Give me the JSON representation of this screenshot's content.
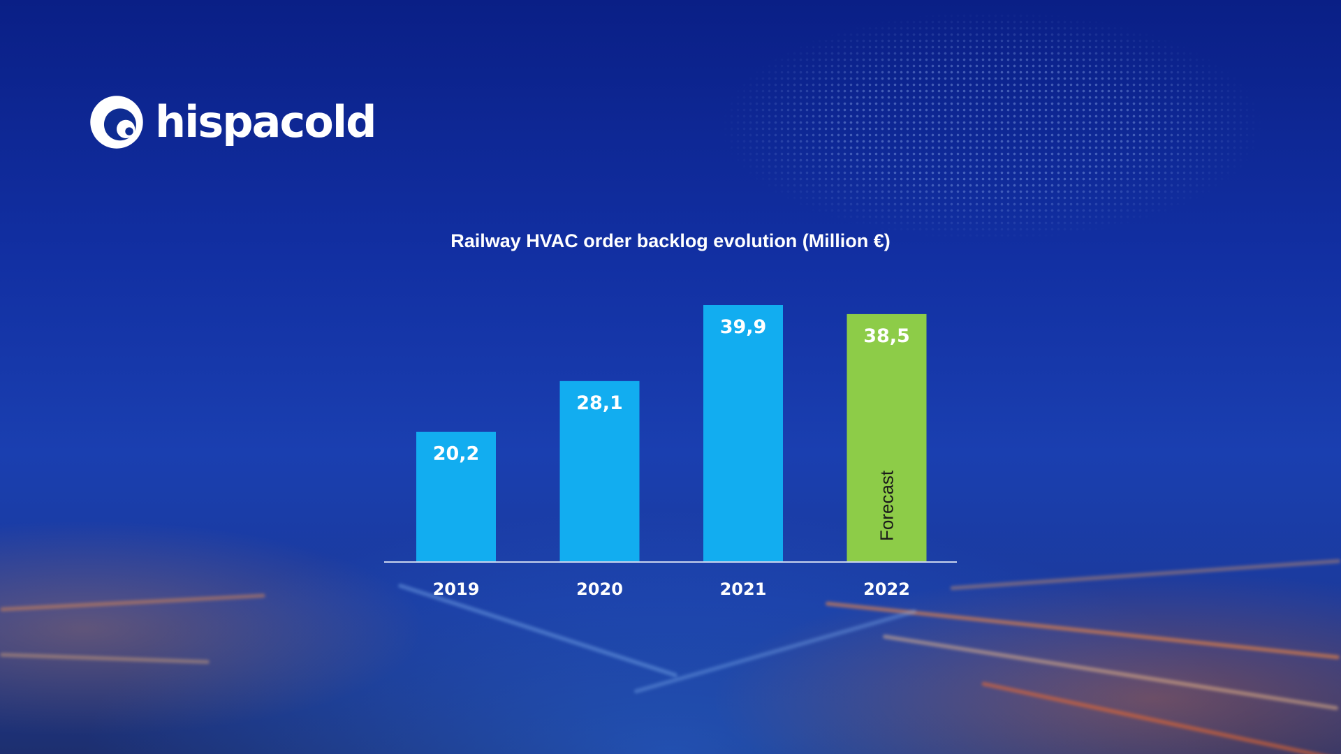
{
  "brand": {
    "name": "hispacold",
    "logo_icon": "hispacold-swirl-icon"
  },
  "chart_data": {
    "type": "bar",
    "title": "Railway HVAC order backlog evolution (Million €)",
    "categories": [
      "2019",
      "2020",
      "2021",
      "2022"
    ],
    "values": [
      20.2,
      28.1,
      39.9,
      38.5
    ],
    "value_labels": [
      "20,2",
      "28,1",
      "39,9",
      "38,5"
    ],
    "colors": [
      "#12adf0",
      "#12adf0",
      "#12adf0",
      "#8dcc48"
    ],
    "annotations": [
      {
        "category": "2022",
        "text": "Forecast"
      }
    ],
    "xlabel": "",
    "ylabel": "",
    "ylim": [
      0,
      39.9
    ],
    "grid": false,
    "legend": "none"
  }
}
